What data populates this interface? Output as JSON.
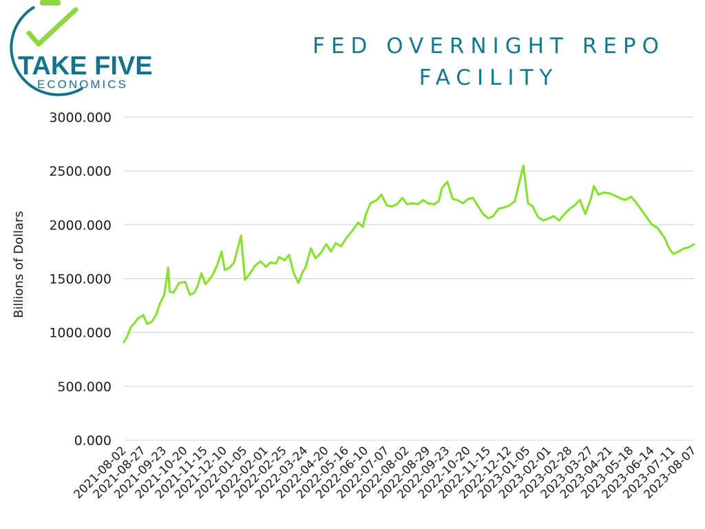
{
  "brand": {
    "name": "TAKE FIVE",
    "tagline": "ECONOMICS"
  },
  "colors": {
    "brand_dark": "#13738a",
    "brand_green": "#8ed63f",
    "title": "#14788f",
    "line": "#88e032",
    "grid": "#cfcfcf",
    "text": "#1b1b1b"
  },
  "chart_data": {
    "type": "line",
    "title": "FED OVERNIGHT REPO FACILITY",
    "ylabel": "Billions of Dollars",
    "xlabel": "",
    "ylim": [
      0,
      3000
    ],
    "grid": "horizontal",
    "ytick_labels": [
      "0.000",
      "500.000",
      "1000.000",
      "1500.000",
      "2000.000",
      "2500.000",
      "3000.000"
    ],
    "ytick_values": [
      0,
      500,
      1000,
      1500,
      2000,
      2500,
      3000
    ],
    "xtick_labels": [
      "2021-08-02",
      "2021-08-27",
      "2021-09-23",
      "2021-10-20",
      "2021-11-15",
      "2021-12-10",
      "2022-01-05",
      "2022-02-01",
      "2022-02-25",
      "2022-03-24",
      "2022-04-20",
      "2022-05-16",
      "2022-06-10",
      "2022-07-07",
      "2022-08-02",
      "2022-08-29",
      "2022-09-23",
      "2022-10-20",
      "2022-11-15",
      "2022-12-12",
      "2023-01-05",
      "2023-02-01",
      "2023-02-28",
      "2023-03-27",
      "2023-04-21",
      "2023-05-18",
      "2023-06-14",
      "2023-07-11",
      "2023-08-07"
    ],
    "x": [
      "2021-08-02",
      "2021-08-06",
      "2021-08-11",
      "2021-08-16",
      "2021-08-20",
      "2021-08-27",
      "2021-09-01",
      "2021-09-07",
      "2021-09-13",
      "2021-09-17",
      "2021-09-23",
      "2021-09-28",
      "2021-09-30",
      "2021-10-05",
      "2021-10-12",
      "2021-10-20",
      "2021-10-26",
      "2021-11-01",
      "2021-11-05",
      "2021-11-10",
      "2021-11-15",
      "2021-11-19",
      "2021-11-24",
      "2021-11-30",
      "2021-12-06",
      "2021-12-10",
      "2021-12-16",
      "2021-12-22",
      "2021-12-31",
      "2022-01-05",
      "2022-01-11",
      "2022-01-18",
      "2022-01-25",
      "2022-02-01",
      "2022-02-07",
      "2022-02-14",
      "2022-02-18",
      "2022-02-25",
      "2022-03-03",
      "2022-03-09",
      "2022-03-15",
      "2022-03-21",
      "2022-03-24",
      "2022-03-31",
      "2022-04-06",
      "2022-04-12",
      "2022-04-20",
      "2022-04-26",
      "2022-05-02",
      "2022-05-09",
      "2022-05-16",
      "2022-05-23",
      "2022-05-31",
      "2022-06-06",
      "2022-06-10",
      "2022-06-16",
      "2022-06-24",
      "2022-06-30",
      "2022-07-07",
      "2022-07-13",
      "2022-07-20",
      "2022-07-27",
      "2022-08-02",
      "2022-08-09",
      "2022-08-16",
      "2022-08-23",
      "2022-08-29",
      "2022-09-06",
      "2022-09-12",
      "2022-09-16",
      "2022-09-23",
      "2022-09-30",
      "2022-10-06",
      "2022-10-13",
      "2022-10-20",
      "2022-10-26",
      "2022-11-01",
      "2022-11-08",
      "2022-11-15",
      "2022-11-21",
      "2022-11-28",
      "2022-12-05",
      "2022-12-12",
      "2022-12-19",
      "2022-12-30",
      "2023-01-05",
      "2023-01-11",
      "2023-01-18",
      "2023-01-25",
      "2023-02-01",
      "2023-02-07",
      "2023-02-14",
      "2023-02-21",
      "2023-02-28",
      "2023-03-06",
      "2023-03-13",
      "2023-03-20",
      "2023-03-27",
      "2023-03-31",
      "2023-04-06",
      "2023-04-13",
      "2023-04-21",
      "2023-04-27",
      "2023-05-03",
      "2023-05-10",
      "2023-05-18",
      "2023-05-24",
      "2023-05-31",
      "2023-06-06",
      "2023-06-14",
      "2023-06-21",
      "2023-06-30",
      "2023-07-06",
      "2023-07-11",
      "2023-07-18",
      "2023-07-25",
      "2023-07-31",
      "2023-08-07"
    ],
    "series": [
      {
        "values": [
          910,
          960,
          1050,
          1090,
          1130,
          1160,
          1080,
          1100,
          1170,
          1260,
          1350,
          1600,
          1380,
          1370,
          1460,
          1470,
          1350,
          1370,
          1430,
          1550,
          1450,
          1480,
          1530,
          1620,
          1750,
          1580,
          1600,
          1650,
          1900,
          1490,
          1540,
          1620,
          1660,
          1610,
          1650,
          1640,
          1700,
          1670,
          1720,
          1550,
          1460,
          1570,
          1600,
          1780,
          1690,
          1730,
          1820,
          1750,
          1830,
          1800,
          1880,
          1940,
          2020,
          1980,
          2100,
          2200,
          2230,
          2280,
          2180,
          2170,
          2190,
          2250,
          2190,
          2200,
          2190,
          2230,
          2200,
          2190,
          2220,
          2340,
          2400,
          2240,
          2230,
          2200,
          2240,
          2250,
          2180,
          2100,
          2060,
          2080,
          2150,
          2160,
          2180,
          2220,
          2550,
          2200,
          2170,
          2070,
          2040,
          2060,
          2080,
          2040,
          2100,
          2150,
          2180,
          2230,
          2100,
          2240,
          2360,
          2280,
          2300,
          2290,
          2270,
          2250,
          2230,
          2260,
          2210,
          2140,
          2080,
          2000,
          1970,
          1880,
          1780,
          1730,
          1750,
          1780,
          1790,
          1820
        ]
      }
    ]
  }
}
